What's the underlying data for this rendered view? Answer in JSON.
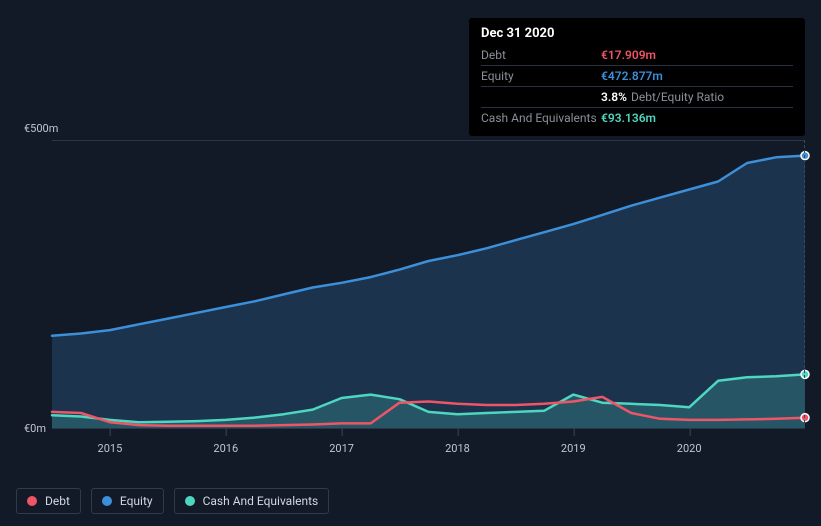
{
  "tooltip": {
    "date": "Dec 31 2020",
    "rows": [
      {
        "label": "Debt",
        "value": "€17.909m",
        "cls": "v-debt"
      },
      {
        "label": "Equity",
        "value": "€472.877m",
        "cls": "v-equity"
      },
      {
        "label": "",
        "value": "3.8%",
        "note": "Debt/Equity Ratio"
      },
      {
        "label": "Cash And Equivalents",
        "value": "€93.136m",
        "cls": "v-cash"
      }
    ]
  },
  "chart": {
    "yaxis": {
      "max": 500,
      "labels": {
        "top": "€500m",
        "bottom": "€0m"
      }
    },
    "xaxis": {
      "start": 2014.5,
      "end": 2021.0,
      "ticks": [
        2015,
        2016,
        2017,
        2018,
        2019,
        2020
      ]
    },
    "colors": {
      "debt": "#ee5566",
      "equity": "#3c8fd8",
      "cash": "#4fd6c1",
      "grid": "#2a3645",
      "text": "#c0c6d0"
    },
    "line_width": 2.5,
    "fill_opacity": 0.22,
    "series": {
      "equity": {
        "label": "Equity",
        "data": [
          [
            2014.5,
            160
          ],
          [
            2014.75,
            164
          ],
          [
            2015.0,
            170
          ],
          [
            2015.25,
            180
          ],
          [
            2015.5,
            190
          ],
          [
            2015.75,
            200
          ],
          [
            2016.0,
            210
          ],
          [
            2016.25,
            220
          ],
          [
            2016.5,
            232
          ],
          [
            2016.75,
            244
          ],
          [
            2017.0,
            252
          ],
          [
            2017.25,
            262
          ],
          [
            2017.5,
            275
          ],
          [
            2017.75,
            290
          ],
          [
            2018.0,
            300
          ],
          [
            2018.25,
            312
          ],
          [
            2018.5,
            326
          ],
          [
            2018.75,
            340
          ],
          [
            2019.0,
            354
          ],
          [
            2019.25,
            370
          ],
          [
            2019.5,
            386
          ],
          [
            2019.75,
            400
          ],
          [
            2020.0,
            414
          ],
          [
            2020.25,
            428
          ],
          [
            2020.5,
            460
          ],
          [
            2020.75,
            470
          ],
          [
            2021.0,
            472.877
          ]
        ]
      },
      "cash": {
        "label": "Cash And Equivalents",
        "data": [
          [
            2014.5,
            22
          ],
          [
            2014.75,
            20
          ],
          [
            2015.0,
            14
          ],
          [
            2015.25,
            10
          ],
          [
            2015.5,
            11
          ],
          [
            2015.75,
            12
          ],
          [
            2016.0,
            14
          ],
          [
            2016.25,
            18
          ],
          [
            2016.5,
            24
          ],
          [
            2016.75,
            32
          ],
          [
            2017.0,
            52
          ],
          [
            2017.25,
            58
          ],
          [
            2017.5,
            50
          ],
          [
            2017.75,
            28
          ],
          [
            2018.0,
            24
          ],
          [
            2018.25,
            26
          ],
          [
            2018.5,
            28
          ],
          [
            2018.75,
            30
          ],
          [
            2019.0,
            58
          ],
          [
            2019.25,
            44
          ],
          [
            2019.5,
            42
          ],
          [
            2019.75,
            40
          ],
          [
            2020.0,
            36
          ],
          [
            2020.25,
            82
          ],
          [
            2020.5,
            88
          ],
          [
            2020.75,
            90
          ],
          [
            2021.0,
            93.136
          ]
        ]
      },
      "debt": {
        "label": "Debt",
        "data": [
          [
            2014.5,
            28
          ],
          [
            2014.75,
            26
          ],
          [
            2015.0,
            10
          ],
          [
            2015.25,
            5
          ],
          [
            2015.5,
            4
          ],
          [
            2015.75,
            4
          ],
          [
            2016.0,
            4
          ],
          [
            2016.25,
            4
          ],
          [
            2016.5,
            5
          ],
          [
            2016.75,
            6
          ],
          [
            2017.0,
            8
          ],
          [
            2017.25,
            8
          ],
          [
            2017.5,
            44
          ],
          [
            2017.75,
            46
          ],
          [
            2018.0,
            42
          ],
          [
            2018.25,
            40
          ],
          [
            2018.5,
            40
          ],
          [
            2018.75,
            42
          ],
          [
            2019.0,
            46
          ],
          [
            2019.25,
            54
          ],
          [
            2019.5,
            26
          ],
          [
            2019.75,
            16
          ],
          [
            2020.0,
            14
          ],
          [
            2020.25,
            14
          ],
          [
            2020.5,
            15
          ],
          [
            2020.75,
            16
          ],
          [
            2021.0,
            17.909
          ]
        ]
      }
    },
    "legend": [
      {
        "key": "debt",
        "label": "Debt"
      },
      {
        "key": "equity",
        "label": "Equity"
      },
      {
        "key": "cash",
        "label": "Cash And Equivalents"
      }
    ]
  }
}
